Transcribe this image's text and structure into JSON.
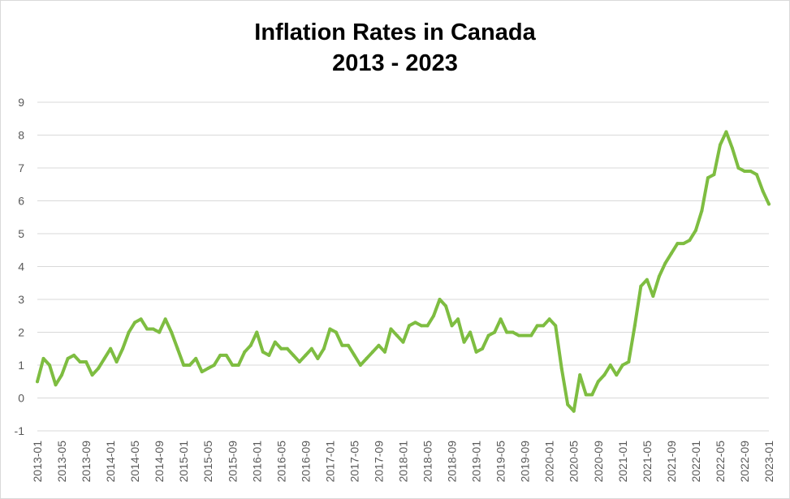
{
  "chart_data": {
    "type": "line",
    "title_line1": "Inflation Rates in Canada",
    "title_line2": "2013 - 2023",
    "xlabel": "",
    "ylabel": "",
    "ylim": [
      -1,
      9
    ],
    "yticks": [
      -1,
      0,
      1,
      2,
      3,
      4,
      5,
      6,
      7,
      8,
      9
    ],
    "xtick_labels": [
      "2013-01",
      "2013-05",
      "2013-09",
      "2014-01",
      "2014-05",
      "2014-09",
      "2015-01",
      "2015-05",
      "2015-09",
      "2016-01",
      "2016-05",
      "2016-09",
      "2017-01",
      "2017-05",
      "2017-09",
      "2018-01",
      "2018-05",
      "2018-09",
      "2019-01",
      "2019-05",
      "2019-09",
      "2020-01",
      "2020-05",
      "2020-09",
      "2021-01",
      "2021-05",
      "2021-09",
      "2022-01",
      "2022-05",
      "2022-09",
      "2023-01"
    ],
    "grid": "horizontal",
    "legend": "none",
    "line_color": "#7ebd41",
    "series": [
      {
        "start": "2013-01",
        "frequency": "monthly",
        "values": [
          0.5,
          1.2,
          1.0,
          0.4,
          0.7,
          1.2,
          1.3,
          1.1,
          1.1,
          0.7,
          0.9,
          1.2,
          1.5,
          1.1,
          1.5,
          2.0,
          2.3,
          2.4,
          2.1,
          2.1,
          2.0,
          2.4,
          2.0,
          1.5,
          1.0,
          1.0,
          1.2,
          0.8,
          0.9,
          1.0,
          1.3,
          1.3,
          1.0,
          1.0,
          1.4,
          1.6,
          2.0,
          1.4,
          1.3,
          1.7,
          1.5,
          1.5,
          1.3,
          1.1,
          1.3,
          1.5,
          1.2,
          1.5,
          2.1,
          2.0,
          1.6,
          1.6,
          1.3,
          1.0,
          1.2,
          1.4,
          1.6,
          1.4,
          2.1,
          1.9,
          1.7,
          2.2,
          2.3,
          2.2,
          2.2,
          2.5,
          3.0,
          2.8,
          2.2,
          2.4,
          1.7,
          2.0,
          1.4,
          1.5,
          1.9,
          2.0,
          2.4,
          2.0,
          2.0,
          1.9,
          1.9,
          1.9,
          2.2,
          2.2,
          2.4,
          2.2,
          0.9,
          -0.2,
          -0.4,
          0.7,
          0.1,
          0.1,
          0.5,
          0.7,
          1.0,
          0.7,
          1.0,
          1.1,
          2.2,
          3.4,
          3.6,
          3.1,
          3.7,
          4.1,
          4.4,
          4.7,
          4.7,
          4.8,
          5.1,
          5.7,
          6.7,
          6.8,
          7.7,
          8.1,
          7.6,
          7.0,
          6.9,
          6.9,
          6.8,
          6.3,
          5.9
        ]
      }
    ]
  }
}
